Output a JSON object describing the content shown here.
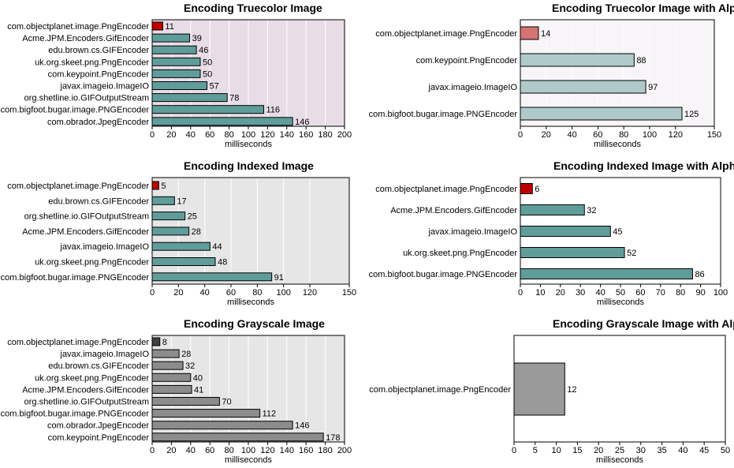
{
  "chart_data": [
    {
      "type": "bar",
      "title": "Encoding Truecolor Image",
      "xlabel": "milliseconds",
      "categories": [
        "com.objectplanet.image.PngEncoder",
        "Acme.JPM.Encoders.GifEncoder",
        "edu.brown.cs.GIFEncoder",
        "uk.org.skeet.png.PngEncoder",
        "com.keypoint.PngEncoder",
        "javax.imageio.ImageIO",
        "org.shetline.io.GIFOutputStream",
        "com.bigfoot.bugar.image.PNGEncoder",
        "com.obrador.JpegEncoder"
      ],
      "values": [
        11,
        39,
        46,
        50,
        50,
        57,
        78,
        116,
        146
      ],
      "value_labels": [
        "11",
        "39",
        "46",
        "50",
        "50",
        "57",
        "78",
        "116",
        "146"
      ],
      "xlim": [
        0,
        200
      ],
      "ticks": [
        0,
        20,
        40,
        60,
        80,
        100,
        120,
        140,
        160,
        180,
        200
      ],
      "grid": true,
      "colors": {
        "plot_bg": "#e8dce6",
        "bar": "#5f9d9b",
        "highlight": "#c00000"
      }
    },
    {
      "type": "bar",
      "title": "Encoding Truecolor Image with Alpha",
      "xlabel": "milliseconds",
      "categories": [
        "com.objectplanet.image.PngEncoder",
        "com.keypoint.PngEncoder",
        "javax.imageio.ImageIO",
        "com.bigfoot.bugar.image.PNGEncoder"
      ],
      "values": [
        14,
        88,
        97,
        125
      ],
      "value_labels": [
        "14",
        "88",
        "97",
        "125"
      ],
      "xlim": [
        0,
        150
      ],
      "ticks": [
        0,
        20,
        40,
        60,
        80,
        100,
        120,
        150
      ],
      "grid": true,
      "colors": {
        "plot_bg": "#f7f5f7",
        "bar": "#b0cacb",
        "highlight": "#d47474"
      }
    },
    {
      "type": "bar",
      "title": "Encoding Indexed Image",
      "xlabel": "milliseconds",
      "categories": [
        "com.objectplanet.image.PngEncoder",
        "edu.brown.cs.GIFEncoder",
        "org.shetline.io.GIFOutputStream",
        "Acme.JPM.Encoders.GifEncoder",
        "javax.imageio.ImageIO",
        "uk.org.skeet.png.PngEncoder",
        "com.bigfoot.bugar.image.PNGEncoder"
      ],
      "values": [
        5,
        17,
        25,
        28,
        44,
        48,
        91
      ],
      "value_labels": [
        "5",
        "17",
        "25",
        "28",
        "44",
        "48",
        "91"
      ],
      "xlim": [
        0,
        150
      ],
      "ticks": [
        0,
        20,
        40,
        60,
        80,
        100,
        120,
        150
      ],
      "grid": true,
      "colors": {
        "plot_bg": "#e6e6e6",
        "bar": "#5f9d9b",
        "highlight": "#c00000"
      }
    },
    {
      "type": "bar",
      "title": "Encoding Indexed Image with Alpha",
      "xlabel": "milliseconds",
      "categories": [
        "com.objectplanet.image.PngEncoder",
        "Acme.JPM.Encoders.GifEncoder",
        "javax.imageio.ImageIO",
        "uk.org.skeet.png.PngEncoder",
        "com.bigfoot.bugar.image.PNGEncoder"
      ],
      "values": [
        6,
        32,
        45,
        52,
        86
      ],
      "value_labels": [
        "6",
        "32",
        "45",
        "52",
        "86"
      ],
      "xlim": [
        0,
        100
      ],
      "ticks": [
        0,
        10,
        20,
        30,
        40,
        50,
        60,
        70,
        80,
        90,
        100
      ],
      "grid": false,
      "colors": {
        "plot_bg": "#ffffff",
        "bar": "#5f9d9b",
        "highlight": "#c00000"
      }
    },
    {
      "type": "bar",
      "title": "Encoding Grayscale Image",
      "xlabel": "milliseconds",
      "categories": [
        "com.objectplanet.image.PngEncoder",
        "javax.imageio.ImageIO",
        "edu.brown.cs.GIFEncoder",
        "uk.org.skeet.png.PngEncoder",
        "Acme.JPM.Encoders.GifEncoder",
        "org.shetline.io.GIFOutputStream",
        "com.bigfoot.bugar.image.PNGEncoder",
        "com.obrador.JpegEncoder",
        "com.keypoint.PngEncoder"
      ],
      "values": [
        8,
        28,
        32,
        40,
        41,
        70,
        112,
        146,
        178
      ],
      "value_labels": [
        "8",
        "28",
        "32",
        "40",
        "41",
        "70",
        "112",
        "146",
        "178"
      ],
      "xlim": [
        0,
        200
      ],
      "ticks": [
        0,
        20,
        40,
        60,
        80,
        100,
        120,
        140,
        160,
        180,
        200
      ],
      "grid": true,
      "colors": {
        "plot_bg": "#e6e6e6",
        "bar": "#8c8c8c",
        "highlight": "#404040"
      }
    },
    {
      "type": "bar",
      "title": "Encoding Grayscale Image with Alpha",
      "xlabel": "milliseconds",
      "categories": [
        "com.objectplanet.image.PngEncoder"
      ],
      "values": [
        12
      ],
      "value_labels": [
        "12"
      ],
      "xlim": [
        0,
        50
      ],
      "ticks": [
        0,
        5,
        10,
        15,
        20,
        25,
        30,
        35,
        40,
        45,
        50
      ],
      "grid": false,
      "colors": {
        "plot_bg": "#ffffff",
        "bar": "#9a9a9a",
        "highlight": "#9a9a9a"
      }
    }
  ]
}
